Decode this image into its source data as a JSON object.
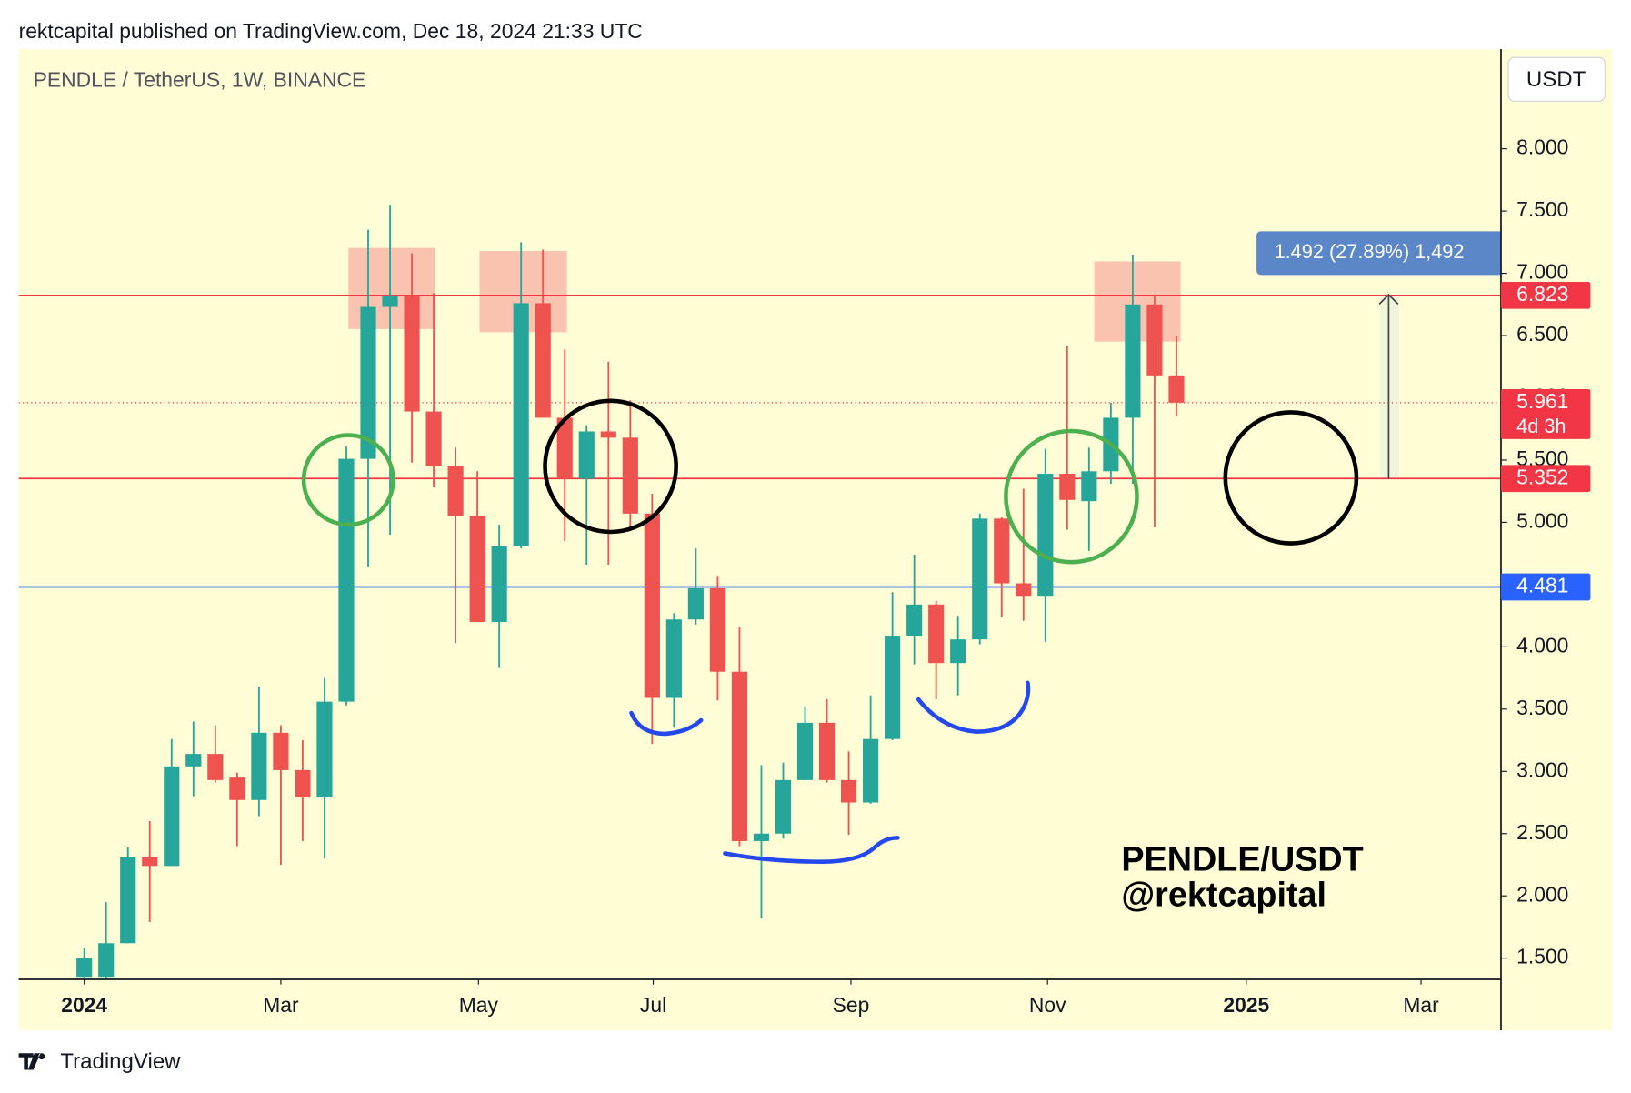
{
  "header": "rektcapital published on TradingView.com, Dec 18, 2024 21:33 UTC",
  "footer": "TradingView",
  "chart_data": {
    "type": "candlestick",
    "title": "PENDLE / TetherUS, 1W, BINANCE",
    "currency": "USDT",
    "watermark": [
      "PENDLE/USDT",
      "@rektcapital"
    ],
    "measure_label": "1.492 (27.89%) 1,492",
    "up_color": "#26a69a",
    "down_color": "#ef5350",
    "open": [
      1.35,
      1.35,
      1.62,
      2.31,
      2.24,
      3.04,
      3.14,
      2.95,
      2.77,
      3.31,
      3.01,
      2.79,
      3.56,
      5.51,
      6.73,
      6.82,
      5.89,
      5.45,
      5.05,
      4.2,
      4.81,
      6.76,
      5.84,
      5.35,
      5.73,
      5.68,
      5.07,
      3.59,
      4.22,
      4.47,
      3.8,
      2.44,
      2.5,
      2.93,
      3.39,
      2.93,
      2.75,
      3.26,
      4.09,
      4.34,
      3.87,
      4.06,
      5.03,
      4.51,
      4.41,
      5.39,
      5.17,
      5.41,
      5.84,
      6.75,
      6.18
    ],
    "high": [
      1.58,
      1.95,
      2.39,
      2.6,
      3.26,
      3.4,
      3.37,
      2.99,
      3.68,
      3.37,
      3.25,
      3.75,
      5.61,
      7.35,
      7.55,
      7.16,
      6.84,
      5.6,
      5.41,
      4.98,
      7.25,
      7.19,
      6.39,
      5.78,
      6.29,
      5.98,
      5.23,
      4.27,
      4.79,
      4.57,
      4.16,
      3.05,
      3.07,
      3.52,
      3.58,
      3.16,
      3.61,
      4.44,
      4.74,
      4.37,
      4.25,
      5.07,
      5.04,
      5.27,
      5.59,
      6.42,
      5.6,
      5.96,
      7.15,
      6.83,
      6.5
    ],
    "low": [
      1.33,
      1.33,
      1.62,
      1.79,
      2.24,
      2.8,
      2.91,
      2.4,
      2.64,
      2.25,
      2.44,
      2.3,
      3.53,
      4.64,
      4.9,
      5.48,
      5.28,
      4.03,
      4.2,
      3.83,
      4.79,
      5.84,
      4.85,
      4.66,
      4.66,
      4.93,
      3.22,
      3.35,
      4.18,
      3.57,
      2.4,
      1.82,
      2.46,
      2.93,
      2.91,
      2.49,
      2.74,
      3.25,
      3.86,
      3.58,
      3.61,
      4.02,
      4.24,
      4.21,
      4.04,
      4.94,
      4.77,
      5.31,
      5.31,
      4.96,
      5.85
    ],
    "close": [
      1.5,
      1.62,
      2.31,
      2.24,
      3.04,
      3.14,
      2.93,
      2.77,
      3.31,
      3.01,
      2.79,
      3.56,
      5.51,
      6.73,
      6.82,
      5.89,
      5.45,
      5.05,
      4.2,
      4.81,
      6.76,
      5.84,
      5.35,
      5.73,
      5.68,
      5.07,
      3.59,
      4.22,
      4.47,
      3.8,
      2.44,
      2.5,
      2.93,
      3.39,
      2.93,
      2.75,
      3.26,
      4.09,
      4.34,
      3.87,
      4.06,
      5.03,
      4.51,
      4.41,
      5.39,
      5.18,
      5.41,
      5.84,
      6.75,
      6.18,
      5.961
    ],
    "xlim": [
      -3,
      64.86
    ],
    "xticks": [
      {
        "value": 0,
        "label": "2024"
      },
      {
        "value": 9,
        "label": "Mar"
      },
      {
        "value": 18.05,
        "label": "May"
      },
      {
        "value": 26.05,
        "label": "Jul"
      },
      {
        "value": 35.1,
        "label": "Sep"
      },
      {
        "value": 44.1,
        "label": "Nov"
      },
      {
        "value": 53.2,
        "label": "2025"
      },
      {
        "value": 61.2,
        "label": "Mar"
      }
    ],
    "ylim": [
      1.33,
      8.8
    ],
    "yticks": [
      {
        "value": 1.5,
        "label": "1.500"
      },
      {
        "value": 2,
        "label": "2.000"
      },
      {
        "value": 2.5,
        "label": "2.500"
      },
      {
        "value": 3,
        "label": "3.000"
      },
      {
        "value": 3.5,
        "label": "3.500"
      },
      {
        "value": 4,
        "label": "4.000"
      },
      {
        "value": 4.5,
        "label": "4.500"
      },
      {
        "value": 5,
        "label": "5.000"
      },
      {
        "value": 5.5,
        "label": "5.500"
      },
      {
        "value": 6,
        "label": "6.000"
      },
      {
        "value": 6.5,
        "label": "6.500"
      },
      {
        "value": 7,
        "label": "7.000"
      },
      {
        "value": 7.5,
        "label": "7.500"
      },
      {
        "value": 8,
        "label": "8.000"
      }
    ],
    "levels": [
      {
        "value": 6.823,
        "color": "#f23645",
        "style": "solid"
      },
      {
        "value": 5.961,
        "color": "#f23645",
        "style": "dotted",
        "countdown": "4d 3h"
      },
      {
        "value": 5.352,
        "color": "#f23645",
        "style": "solid"
      },
      {
        "value": 4.481,
        "color": "#2962ff",
        "style": "solid"
      }
    ]
  }
}
